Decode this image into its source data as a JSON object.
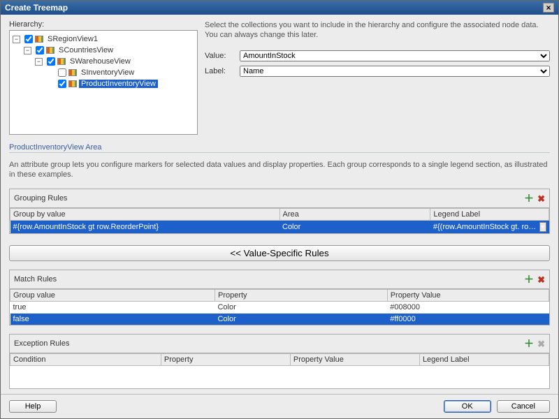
{
  "window": {
    "title": "Create Treemap"
  },
  "hierarchy": {
    "label": "Hierarchy:",
    "items": [
      {
        "label": "SRegionView1",
        "level": 0,
        "checked": true,
        "expanded": true,
        "selected": false
      },
      {
        "label": "SCountriesView",
        "level": 1,
        "checked": true,
        "expanded": true,
        "selected": false
      },
      {
        "label": "SWarehouseView",
        "level": 2,
        "checked": true,
        "expanded": true,
        "selected": false
      },
      {
        "label": "SInventoryView",
        "level": 3,
        "checked": false,
        "expanded": false,
        "selected": false
      },
      {
        "label": "ProductInventoryView",
        "level": 3,
        "checked": true,
        "expanded": false,
        "selected": true
      }
    ]
  },
  "config": {
    "description": "Select the collections you want to include in the hierarchy and configure the associated node data. You can always change this later.",
    "value_label": "Value:",
    "value_selected": "AmountInStock",
    "label_label": "Label:",
    "label_selected": "Name"
  },
  "area": {
    "title": "ProductInventoryView Area",
    "description": "An attribute group lets you configure markers for selected data values and display properties. Each group corresponds to a single legend section, as illustrated in these examples."
  },
  "grouping": {
    "title": "Grouping Rules",
    "columns": {
      "c0": "Group by value",
      "c1": "Area",
      "c2": "Legend Label"
    },
    "row": {
      "group_by": "#{row.AmountInStock gt row.ReorderPoint}",
      "area": "Color",
      "legend": "#{(row.AmountInStock gt. row.ReorderPoint) ? 'S"
    },
    "value_specific_btn": "<< Value-Specific Rules"
  },
  "match": {
    "title": "Match Rules",
    "columns": {
      "c0": "Group value",
      "c1": "Property",
      "c2": "Property Value"
    },
    "rows": [
      {
        "gv": "true",
        "prop": "Color",
        "pv": "#008000",
        "selected": false
      },
      {
        "gv": "false",
        "prop": "Color",
        "pv": "#ff0000",
        "selected": true
      }
    ]
  },
  "exception": {
    "title": "Exception Rules",
    "columns": {
      "c0": "Condition",
      "c1": "Property",
      "c2": "Property Value",
      "c3": "Legend Label"
    }
  },
  "footer": {
    "help": "Help",
    "ok": "OK",
    "cancel": "Cancel"
  },
  "colors": {
    "titlebar_top": "#3a6ea5",
    "titlebar_bottom": "#1e4e8c",
    "selection": "#1e60c9",
    "background": "#ececec",
    "section_title": "#395d9e"
  }
}
